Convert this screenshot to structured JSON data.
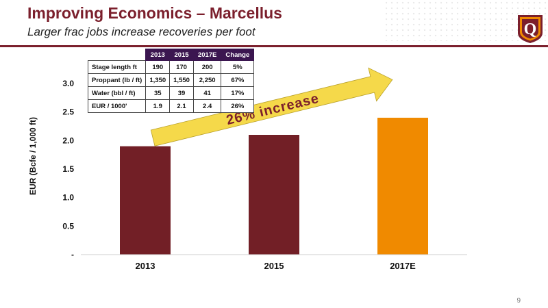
{
  "header": {
    "title": "Improving Economics – Marcellus",
    "subtitle": "Larger frac jobs increase recoveries per foot",
    "logo_letter": "Q"
  },
  "table": {
    "columns": [
      "",
      "2013",
      "2015",
      "2017E",
      "Change"
    ],
    "rows": [
      [
        "Stage length ft",
        "190",
        "170",
        "200",
        "5%"
      ],
      [
        "Proppant (lb / ft)",
        "1,350",
        "1,550",
        "2,250",
        "67%"
      ],
      [
        "Water (bbl / ft)",
        "35",
        "39",
        "41",
        "17%"
      ],
      [
        "EUR / 1000'",
        "1.9",
        "2.1",
        "2.4",
        "26%"
      ]
    ]
  },
  "annotation": "26% increase",
  "page_number": "9",
  "colors": {
    "brand": "#7b1f2c",
    "bar_historical": "#721f26",
    "bar_estimate": "#f08a00",
    "arrow": "#f5d94a",
    "table_header": "#3b1650"
  },
  "chart_data": {
    "type": "bar",
    "categories": [
      "2013",
      "2015",
      "2017E"
    ],
    "values": [
      1.9,
      2.1,
      2.4
    ],
    "ylabel": "EUR (Bcfe / 1,000 ft)",
    "ylim": [
      0,
      3.0
    ],
    "yticks": [
      0,
      0.5,
      1.0,
      1.5,
      2.0,
      2.5,
      3.0
    ],
    "ytick_labels": [
      "-",
      "0.5",
      "1.0",
      "1.5",
      "2.0",
      "2.5",
      "3.0"
    ],
    "bar_colors": [
      "#721f26",
      "#721f26",
      "#f08a00"
    ],
    "grid": false
  }
}
